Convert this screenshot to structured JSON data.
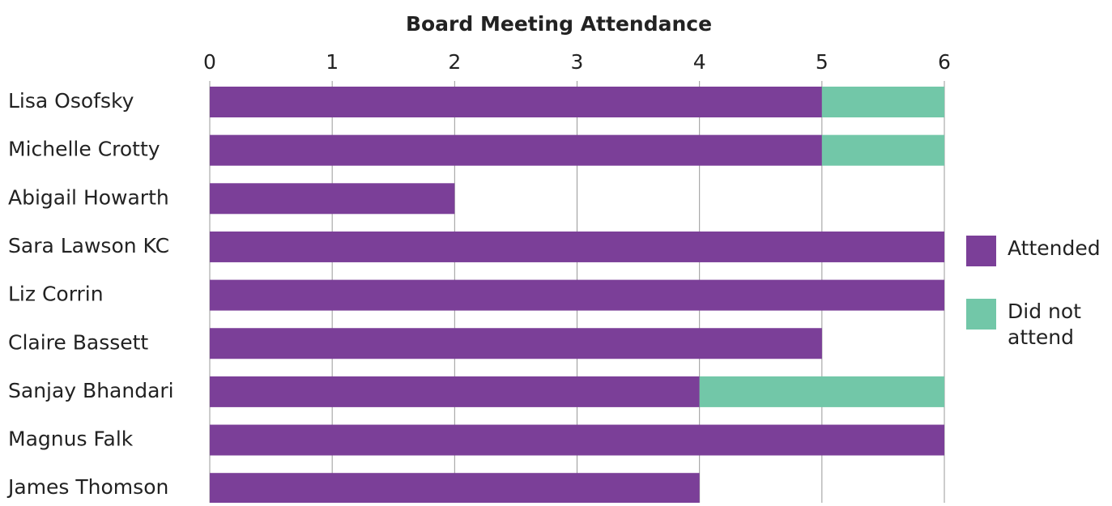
{
  "chart_data": {
    "type": "stacked-bar",
    "orientation": "horizontal",
    "title": "Board Meeting Attendance",
    "categories": [
      "Lisa Osofsky",
      "Michelle Crotty",
      "Abigail Howarth",
      "Sara Lawson KC",
      "Liz Corrin",
      "Claire Bassett",
      "Sanjay Bhandari",
      "Magnus Falk",
      "James Thomson"
    ],
    "series": [
      {
        "name": "Attended",
        "color": "#7b3f98",
        "values": [
          5,
          5,
          2,
          6,
          6,
          5,
          4,
          6,
          4
        ]
      },
      {
        "name": "Did not attend",
        "color": "#72c7a8",
        "values": [
          1,
          1,
          0,
          0,
          0,
          0,
          2,
          0,
          0
        ]
      }
    ],
    "xlim": [
      0,
      6
    ],
    "xticks": [
      0,
      1,
      2,
      3,
      4,
      5,
      6
    ],
    "grid": true,
    "legend": "right"
  }
}
